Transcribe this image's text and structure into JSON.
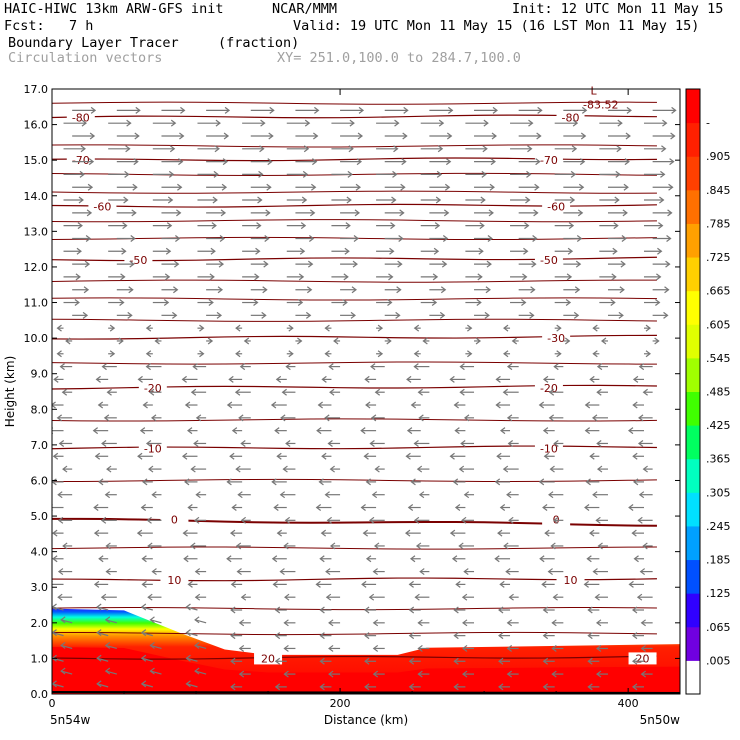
{
  "header": {
    "line1_left": "HAIC-HIWC 13km ARW-GFS init",
    "line1_mid": "NCAR/MMM",
    "line1_right": "Init: 12 UTC Mon 11 May 15",
    "fcst": "Fcst:   7 h",
    "valid": "Valid: 19 UTC Mon 11 May 15 (16 LST Mon 11 May 15)",
    "field": "Boundary Layer Tracer",
    "field_units": "(fraction)",
    "vectors": "Circulation vectors",
    "xy": "XY= 251.0,100.0 to 284.7,100.0"
  },
  "chart_data": {
    "type": "heatmap",
    "title": "Boundary Layer Tracer",
    "xlabel": "Distance (km)",
    "ylabel": "Height (km)",
    "xlim": [
      0,
      436
    ],
    "ylim": [
      0.0,
      17.0
    ],
    "x_ticks": [
      0,
      200,
      400
    ],
    "x_end_labels": [
      "5n54w",
      "5n50w"
    ],
    "y_ticks": [
      "0.0",
      "1.0",
      "2.0",
      "3.0",
      "4.0",
      "5.0",
      "6.0",
      "7.0",
      "8.0",
      "9.0",
      "10.0",
      "11.0",
      "12.0",
      "13.0",
      "14.0",
      "15.0",
      "16.0",
      "17.0"
    ],
    "colorbar_labels": [
      ".005",
      ".065",
      ".125",
      ".185",
      ".245",
      ".305",
      ".365",
      ".425",
      ".485",
      ".545",
      ".605",
      ".665",
      ".725",
      ".785",
      ".845",
      ".905",
      "-"
    ],
    "colorbar_colors": [
      "#ffffff",
      "#7000e0",
      "#3000ff",
      "#0050ff",
      "#00a0ff",
      "#00e0ff",
      "#00ffc0",
      "#00ff60",
      "#40ff00",
      "#a0ff00",
      "#e0ff00",
      "#ffff00",
      "#ffd000",
      "#ffa000",
      "#ff7000",
      "#ff4000",
      "#ff2000",
      "#ff0000"
    ],
    "boundary_layer_top_km": {
      "x": [
        0,
        50,
        90,
        120,
        150,
        240,
        260,
        436
      ],
      "y": [
        2.4,
        2.35,
        1.7,
        1.25,
        1.1,
        1.1,
        1.3,
        1.4
      ]
    },
    "temperature_contours": {
      "name": "Temperature (C)",
      "values": [
        -80,
        -70,
        -60,
        -50,
        -30,
        -20,
        -10,
        0,
        10,
        20
      ],
      "heights_km": [
        16.2,
        15.0,
        13.7,
        12.2,
        10.0,
        8.6,
        6.9,
        4.9,
        3.2,
        1.0
      ],
      "label_positions_km": [
        {
          "label": "-80",
          "x": 20
        },
        {
          "label": "-80",
          "x": 360
        },
        {
          "label": "-70",
          "x": 20
        },
        {
          "label": "-70",
          "x": 345
        },
        {
          "label": "-60",
          "x": 35
        },
        {
          "label": "-60",
          "x": 350
        },
        {
          "label": "-50",
          "x": 60
        },
        {
          "label": "-50",
          "x": 345
        },
        {
          "label": "-30",
          "x": 350
        },
        {
          "label": "-20",
          "x": 70
        },
        {
          "label": "-20",
          "x": 345
        },
        {
          "label": "-10",
          "x": 70
        },
        {
          "label": "-10",
          "x": 345
        },
        {
          "label": "0",
          "x": 85
        },
        {
          "label": "0",
          "x": 350
        },
        {
          "label": "10",
          "x": 85
        },
        {
          "label": "10",
          "x": 360
        },
        {
          "label": "20",
          "x": 150
        },
        {
          "label": "20",
          "x": 410
        }
      ],
      "min_label": "-83.52",
      "min_marker": "L"
    },
    "vectors": {
      "name": "Circulation vectors",
      "upper_direction": "east",
      "lower_direction": "west",
      "turn_height_km": 10.3
    }
  }
}
